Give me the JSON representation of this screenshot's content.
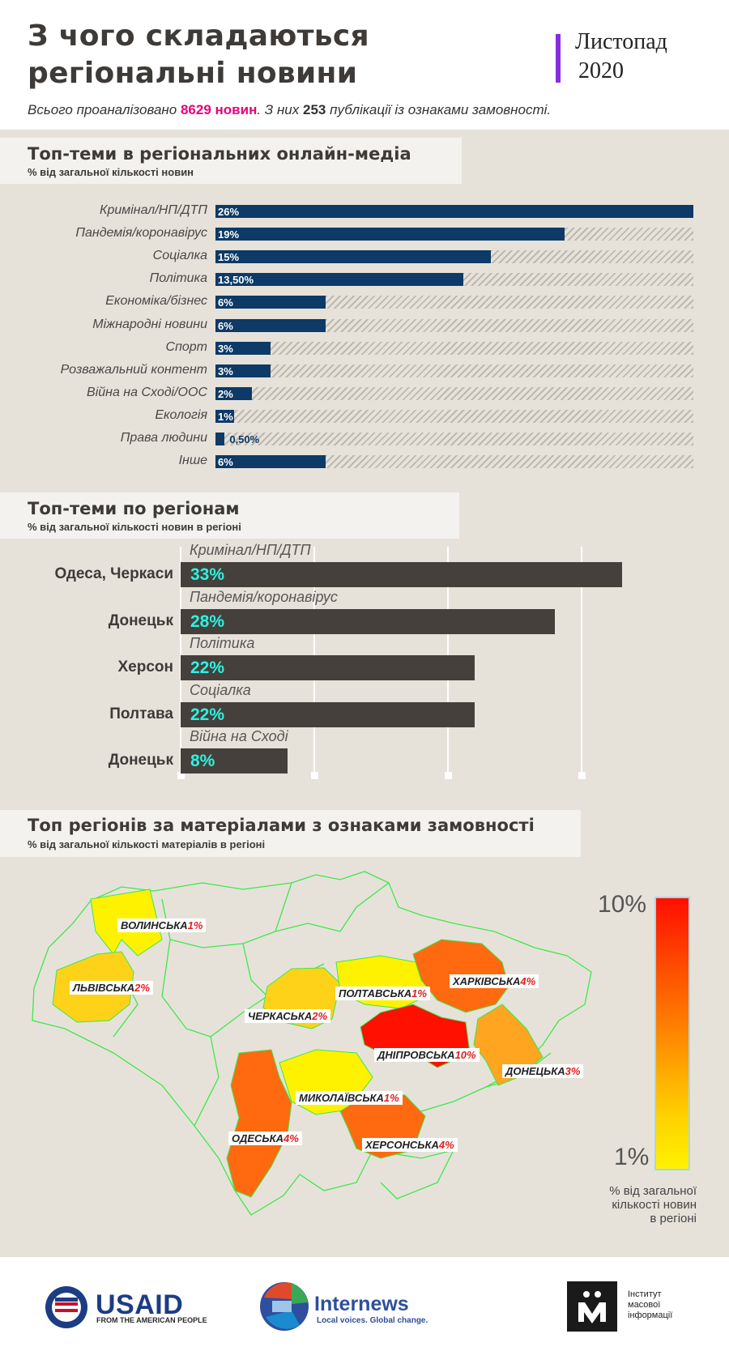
{
  "header": {
    "title_line1": "З чого складаються",
    "title_line2": "регіональні новини",
    "date_month": "Листопад",
    "date_year": "2020",
    "summary_prefix": "Всього проаналізовано ",
    "summary_total": "8629 новин",
    "summary_mid": ". З них ",
    "summary_count": "253",
    "summary_suffix": " публікації із ознаками замовності."
  },
  "section1": {
    "title": "Топ-теми в регіональних онлайн-медіа",
    "subtitle": "% від загальної кількості новин"
  },
  "section2": {
    "title": "Топ-теми по регіонам",
    "subtitle": "% від загальної кількості новин в регіоні"
  },
  "section3": {
    "title": "Топ регіонів за матеріалами з ознаками замовності",
    "subtitle": "% від загальної кількості матеріалів в регіоні"
  },
  "chart_data": [
    {
      "type": "bar",
      "orientation": "horizontal",
      "categories": [
        "Кримінал/НП/ДТП",
        "Пандемія/коронавірус",
        "Соціалка",
        "Політика",
        "Економіка/бізнес",
        "Міжнародні новини",
        "Спорт",
        "Розважальний контент",
        "Війна на Сході/ООС",
        "Екологія",
        "Права людини",
        "Інше"
      ],
      "values": [
        26,
        19,
        15,
        13.5,
        6,
        6,
        3,
        3,
        2,
        1,
        0.5,
        6
      ],
      "value_labels": [
        "26%",
        "19%",
        "15%",
        "13,50%",
        "6%",
        "6%",
        "3%",
        "3%",
        "2%",
        "1%",
        "0,50%",
        "6%"
      ],
      "xlim": [
        0,
        26
      ],
      "color": "#0d3a66"
    },
    {
      "type": "bar",
      "orientation": "horizontal",
      "regions": [
        "Одеса, Черкаси",
        "Донецьк",
        "Херсон",
        "Полтава",
        "Донецьк"
      ],
      "topics": [
        "Кримінал/НП/ДТП",
        "Пандемія/коронавірус",
        "Політика",
        "Соціалка",
        "Війна на Сході"
      ],
      "values": [
        33,
        28,
        22,
        22,
        8
      ],
      "value_labels": [
        "33%",
        "28%",
        "22%",
        "22%",
        "8%"
      ],
      "xlim": [
        0,
        40
      ],
      "color": "#45403c",
      "value_color": "#2ef2e0"
    },
    {
      "type": "heatmap",
      "regions": [
        {
          "label": "Волинська",
          "value_label": "1%",
          "value": 1
        },
        {
          "label": "Львівська",
          "value_label": "2%",
          "value": 2
        },
        {
          "label": "Полтавська",
          "value_label": "1%",
          "value": 1
        },
        {
          "label": "Харківська",
          "value_label": "4%",
          "value": 4
        },
        {
          "label": "Черкаська",
          "value_label": "2%",
          "value": 2
        },
        {
          "label": "Дніпровська",
          "value_label": "10%",
          "value": 10
        },
        {
          "label": "Донецька",
          "value_label": "3%",
          "value": 3
        },
        {
          "label": "Миколаївська",
          "value_label": "1%",
          "value": 1
        },
        {
          "label": "Одеська",
          "value_label": "4%",
          "value": 4
        },
        {
          "label": "Херсонська",
          "value_label": "4%",
          "value": 4
        }
      ],
      "scale_max_label": "10%",
      "scale_min_label": "1%",
      "legend_caption_line1": "% від загальної",
      "legend_caption_line2": "кількості новин",
      "legend_caption_line3": "в регіоні"
    }
  ],
  "footer": {
    "usaid_name": "USAID",
    "usaid_tagline": "FROM THE AMERICAN PEOPLE",
    "internews_name": "Internews",
    "internews_tagline": "Local voices. Global change.",
    "imi_line1": "Інститут",
    "imi_line2": "масової",
    "imi_line3": "інформації"
  }
}
